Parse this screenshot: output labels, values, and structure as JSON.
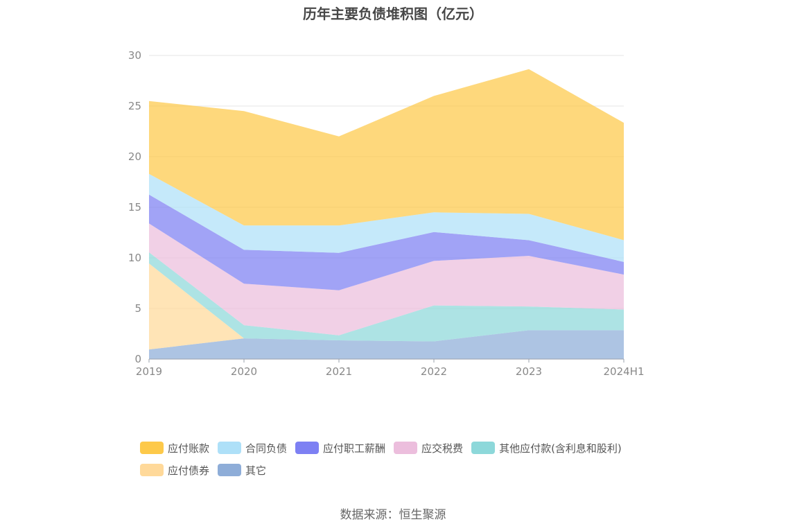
{
  "title": "历年主要负债堆积图（亿元）",
  "source": "数据来源：恒生聚源",
  "chart_data": {
    "type": "area",
    "stacked": true,
    "title": "历年主要负债堆积图（亿元）",
    "xlabel": "",
    "ylabel": "",
    "categories": [
      "2019",
      "2020",
      "2021",
      "2022",
      "2023",
      "2024H1"
    ],
    "ylim": [
      0,
      30
    ],
    "yticks": [
      0,
      5,
      10,
      15,
      20,
      25,
      30
    ],
    "grid": true,
    "legend_position": "bottom",
    "series": [
      {
        "name": "其它",
        "color": "#8eadd8",
        "values": [
          0.95,
          2.05,
          1.85,
          1.75,
          2.85,
          2.85
        ]
      },
      {
        "name": "应付债券",
        "color": "#ffd99a",
        "values": [
          8.5,
          0,
          0,
          0,
          0,
          0
        ]
      },
      {
        "name": "其他应付款(含利息和股利)",
        "color": "#8dd8da",
        "values": [
          1.1,
          1.3,
          0.5,
          3.55,
          2.35,
          2.05
        ]
      },
      {
        "name": "应交税费",
        "color": "#ecbedd",
        "values": [
          2.85,
          4.1,
          4.45,
          4.4,
          5.0,
          3.45
        ]
      },
      {
        "name": "应付职工薪酬",
        "color": "#7d80f3",
        "values": [
          2.85,
          3.35,
          3.7,
          2.85,
          1.55,
          1.25
        ]
      },
      {
        "name": "合同负债",
        "color": "#aee0f8",
        "values": [
          2.05,
          2.4,
          2.7,
          1.95,
          2.6,
          2.15
        ]
      },
      {
        "name": "应付账款",
        "color": "#fdc94a",
        "values": [
          7.2,
          11.3,
          8.8,
          11.5,
          14.3,
          11.6
        ]
      }
    ]
  },
  "legend": {
    "row1": [
      "应付账款",
      "合同负债",
      "应付职工薪酬",
      "应交税费",
      "其他应付款(含利息和股利)"
    ],
    "row2": [
      "应付债券",
      "其它"
    ],
    "colors": {
      "应付账款": "#fdc94a",
      "合同负债": "#aee0f8",
      "应付职工薪酬": "#7d80f3",
      "应交税费": "#ecbedd",
      "其他应付款(含利息和股利)": "#8dd8da",
      "应付债券": "#ffd99a",
      "其它": "#8eadd8"
    }
  }
}
